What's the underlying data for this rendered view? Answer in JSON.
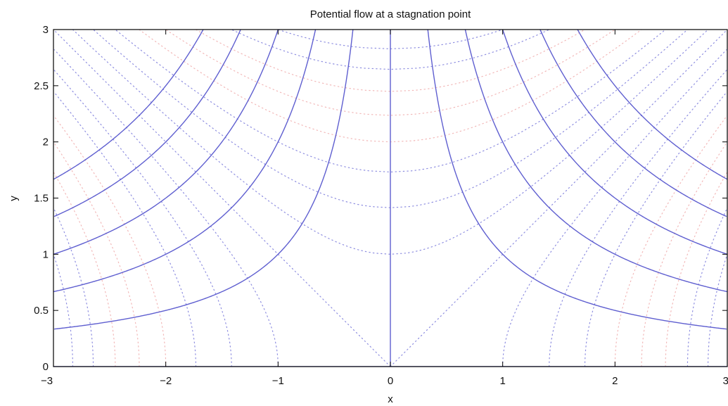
{
  "chart_data": {
    "type": "line",
    "title": "Potential flow at a stagnation point",
    "xlabel": "x",
    "ylabel": "y",
    "xlim": [
      -3,
      3
    ],
    "ylim": [
      0,
      3
    ],
    "x_ticks": [
      -3,
      -2,
      -1,
      0,
      1,
      2,
      3
    ],
    "x_tick_labels": [
      "−3",
      "−2",
      "−1",
      "0",
      "1",
      "2",
      "3"
    ],
    "y_ticks": [
      0,
      0.5,
      1,
      1.5,
      2,
      2.5,
      3
    ],
    "y_tick_labels": [
      "0",
      "0.5",
      "1",
      "1.5",
      "2",
      "2.5",
      "3"
    ],
    "grid": false,
    "streamlines": {
      "style": "solid",
      "color": "#5f5fd0",
      "equation": "x*y = c",
      "levels": [
        0,
        1,
        2,
        3,
        4,
        5
      ]
    },
    "potential_lines": {
      "style": "dotted",
      "color_light": "#f2b8b8",
      "color_dark": "#8e8ee0",
      "equation": "(x^2 - y^2)/2 = c",
      "levels": [
        -4,
        -3.5,
        -3,
        -2.5,
        -2,
        -1.5,
        -1,
        -0.5,
        0,
        0.5,
        1,
        1.5,
        2,
        2.5,
        3,
        3.5,
        4
      ]
    }
  }
}
